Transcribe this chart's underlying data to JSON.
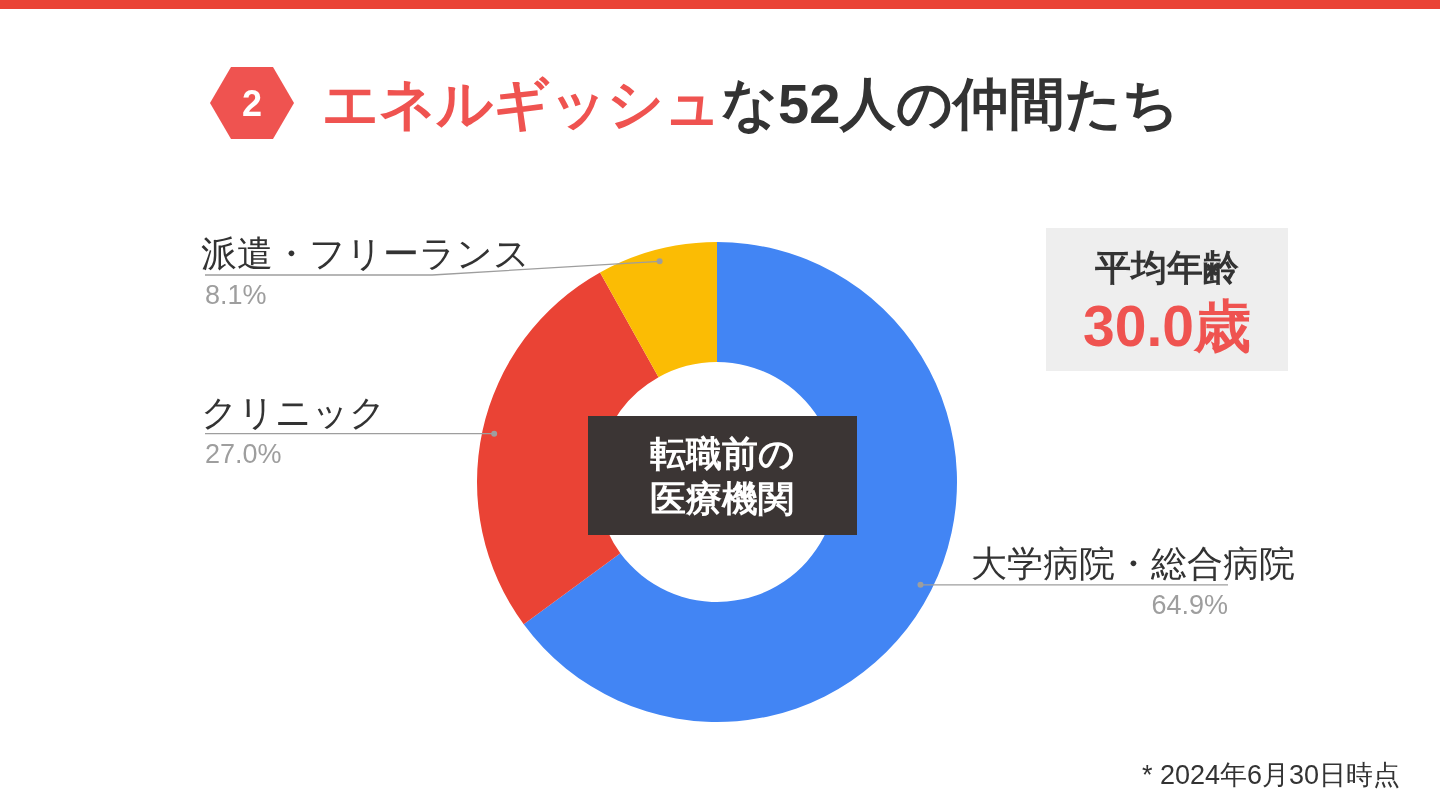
{
  "chart_data": {
    "type": "donut",
    "title": "エネルギッシュな52人の仲間たち",
    "categories": [
      "大学病院・総合病院",
      "クリニック",
      "派遣・フリーランス"
    ],
    "values": [
      64.9,
      27.0,
      8.1
    ],
    "colors": [
      "#4285f4",
      "#ea4335",
      "#fbbc04"
    ],
    "value_labels": [
      "64.9%",
      "27.0%",
      "8.1%"
    ],
    "annotations": [
      "2",
      "転職前の医療機関",
      "平均年齢",
      "30.0歳",
      "* 2024年6月30日時点"
    ]
  }
}
